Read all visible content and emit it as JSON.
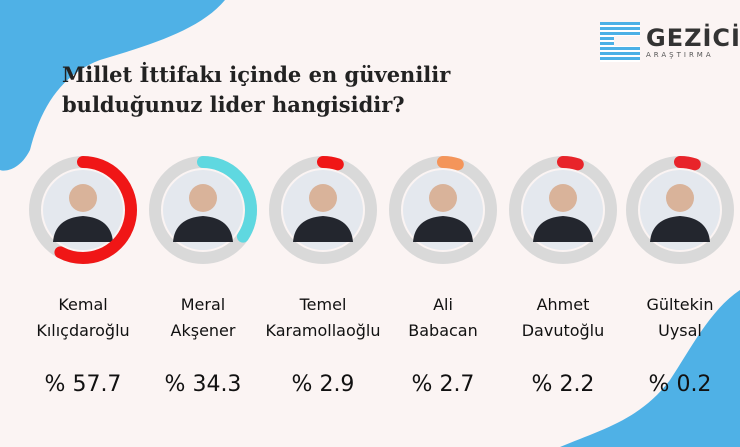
{
  "title": "Millet İttifakı içinde en güvenilir bulduğunuz lider hangisidir?",
  "logo": {
    "name": "GEZİCİ",
    "sub": "ARAŞTIRMA"
  },
  "colors": {
    "background": "#fbf4f3",
    "accent_blue": "#4fb1e6",
    "ring_track": "#d9d9d9"
  },
  "chart_data": {
    "type": "radial-progress",
    "title": "Millet İttifakı içinde en güvenilir bulduğunuz lider hangisidir?",
    "unit": "%",
    "items": [
      {
        "first": "Kemal",
        "last": "Kılıçdaroğlu",
        "value": 57.7,
        "label": "% 57.7",
        "color": "#f01616"
      },
      {
        "first": "Meral",
        "last": "Akşener",
        "value": 34.3,
        "label": "% 34.3",
        "color": "#5fd8e0"
      },
      {
        "first": "Temel",
        "last": "Karamollaoğlu",
        "value": 2.9,
        "label": "% 2.9",
        "color": "#f01616"
      },
      {
        "first": "Ali",
        "last": "Babacan",
        "value": 2.7,
        "label": "% 2.7",
        "color": "#f4955a"
      },
      {
        "first": "Ahmet",
        "last": "Davutoğlu",
        "value": 2.2,
        "label": "% 2.2",
        "color": "#e8242a"
      },
      {
        "first": "Gültekin",
        "last": "Uysal",
        "value": 0.2,
        "label": "% 0.2",
        "color": "#e8242a"
      }
    ]
  }
}
